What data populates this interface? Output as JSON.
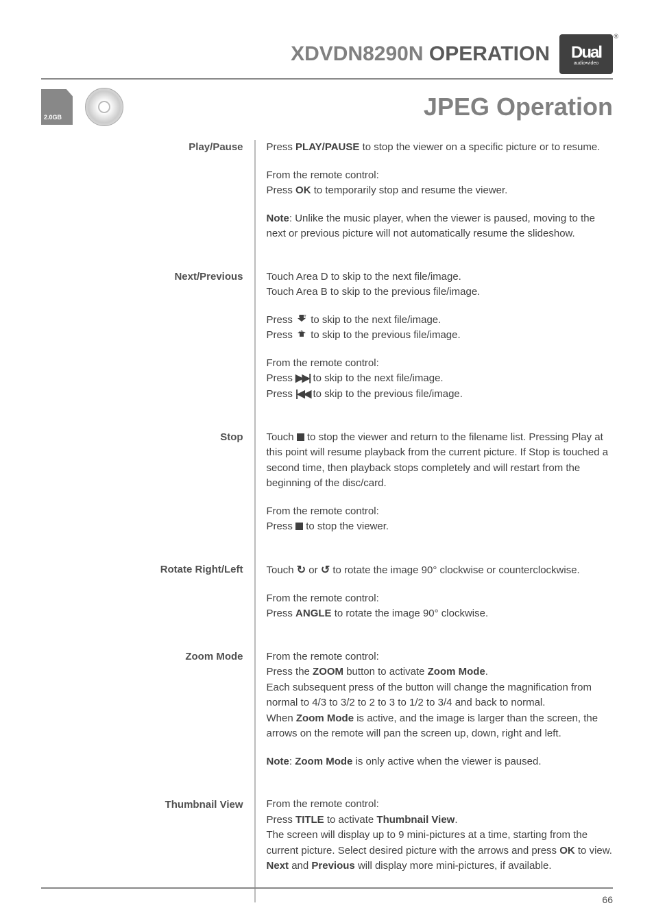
{
  "header": {
    "product": "XDVDN8290N",
    "label": "OPERATION",
    "logo_main": "Dual",
    "logo_sub": "audio•video"
  },
  "section": {
    "sd_label": "2.0GB",
    "title": "JPEG Operation"
  },
  "rows": [
    {
      "label": "Play/Pause",
      "paras": [
        {
          "html": "Press <b>PLAY/PAUSE</b> to stop the viewer on a specific picture or to resume."
        },
        {
          "html": "From the remote control:<br>Press <b>OK</b> to temporarily stop and resume the viewer."
        },
        {
          "html": "<b>Note</b>: Unlike the music player, when the viewer is paused, moving to the next or previous picture will not automatically resume the slideshow."
        }
      ]
    },
    {
      "label": "Next/Previous",
      "paras": [
        {
          "html": "Touch Area D to skip to the next file/image.<br>Touch Area B to skip to the previous file/image."
        },
        {
          "html": "Press <span class='sym'><svg width='18' height='14' viewBox='0 0 18 14'><path d='M9 2 L15 7 L12 7 L12 12 L6 12 L6 7 L3 7 Z' transform='rotate(180 9 7)' fill='#404040'/><text x='5' y='6' font-size='5' fill='#404040' font-weight='700'>OUT</text></svg></span> to skip to the next file/image.<br>Press <span class='sym'><svg width='18' height='14' viewBox='0 0 18 14'><path d='M9 2 L15 7 L12 7 L12 12 L6 12 L6 7 L3 7 Z' fill='#404040'/><text x='7' y='5' font-size='5' fill='#fff' font-weight='700'>IN</text></svg></span> to skip to the previous file/image."
        },
        {
          "html": "From the remote control:<br>Press <span class='sym sym-next'>▶▶|</span> to skip to the next file/image.<br>Press <span class='sym sym-prev'>|◀◀</span> to skip to the previous file/image."
        }
      ]
    },
    {
      "label": "Stop",
      "paras": [
        {
          "html": "Touch <span class='sym-stop'></span> to stop the viewer and return to the filename list. Pressing Play at this point will resume playback from the current picture. If Stop is touched a second time, then playback stops completely and will restart from the beginning of the disc/card."
        },
        {
          "html": "From the remote control:<br>Press <span class='sym-stop'></span> to stop the viewer."
        }
      ]
    },
    {
      "label": "Rotate Right/Left",
      "paras": [
        {
          "html": "Touch <span class='sym sym-rotate'>↻</span> or <span class='sym sym-rotate'>↺</span> to rotate the image 90° clockwise or counterclockwise."
        },
        {
          "html": "From the remote control:<br>Press <b>ANGLE</b> to rotate the image 90° clockwise."
        }
      ]
    },
    {
      "label": "Zoom Mode",
      "paras": [
        {
          "html": "From the remote control:<br>Press the <b>ZOOM</b> button to activate <b>Zoom Mode</b>.<br>Each subsequent press of the button will change the magnification from normal to 4/3 to 3/2 to 2 to 3 to 1/2 to 3/4 and back to normal.<br>When <b>Zoom Mode</b> is active, and the image is larger than the screen, the arrows on the remote will pan the screen up, down, right and left."
        },
        {
          "html": "<b>Note</b>: <b>Zoom Mode</b> is only active when the viewer is paused."
        }
      ]
    },
    {
      "label": "Thumbnail View",
      "paras": [
        {
          "html": "From the remote control:<br>Press <b>TITLE</b> to activate <b>Thumbnail View</b>.<br>The screen will display up to 9 mini-pictures at a time, starting from the current picture. Select desired picture with the arrows and press <b>OK</b> to view. <b>Next</b> and <b>Previous</b> will display more mini-pictures, if available."
        }
      ]
    }
  ],
  "page_number": "66",
  "colors": {
    "text": "#404040",
    "muted": "#808080",
    "rule": "#888888",
    "col_rule": "#bbbbbb"
  }
}
